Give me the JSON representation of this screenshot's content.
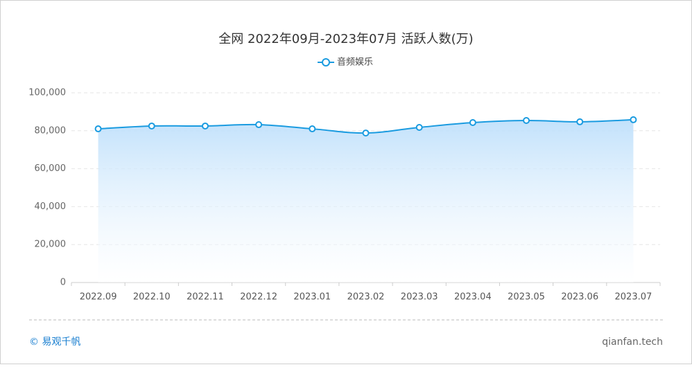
{
  "chart_data": {
    "type": "area-line",
    "title": "全网 2022年09月-2023年07月 活跃人数(万)",
    "categories": [
      "2022.09",
      "2022.10",
      "2022.11",
      "2022.12",
      "2023.01",
      "2023.02",
      "2023.03",
      "2023.04",
      "2023.05",
      "2023.06",
      "2023.07"
    ],
    "series": [
      {
        "name": "音频娱乐",
        "color": "#1a9be0",
        "values": [
          81000,
          82500,
          82500,
          83200,
          81000,
          78800,
          81750,
          84300,
          85400,
          84700,
          85800
        ]
      }
    ],
    "ylim": [
      0,
      100000
    ],
    "yticks": [
      0,
      {
        "value": 20000,
        "label": "20,000"
      },
      {
        "value": 40000,
        "label": "40,000"
      },
      {
        "value": 60000,
        "label": "60,000"
      },
      {
        "value": 80000,
        "label": "80,000"
      },
      {
        "value": 100000,
        "label": "100,000"
      }
    ],
    "grid": true
  },
  "footer": {
    "brand": "© 易观千帆",
    "site": "qianfan.tech"
  }
}
